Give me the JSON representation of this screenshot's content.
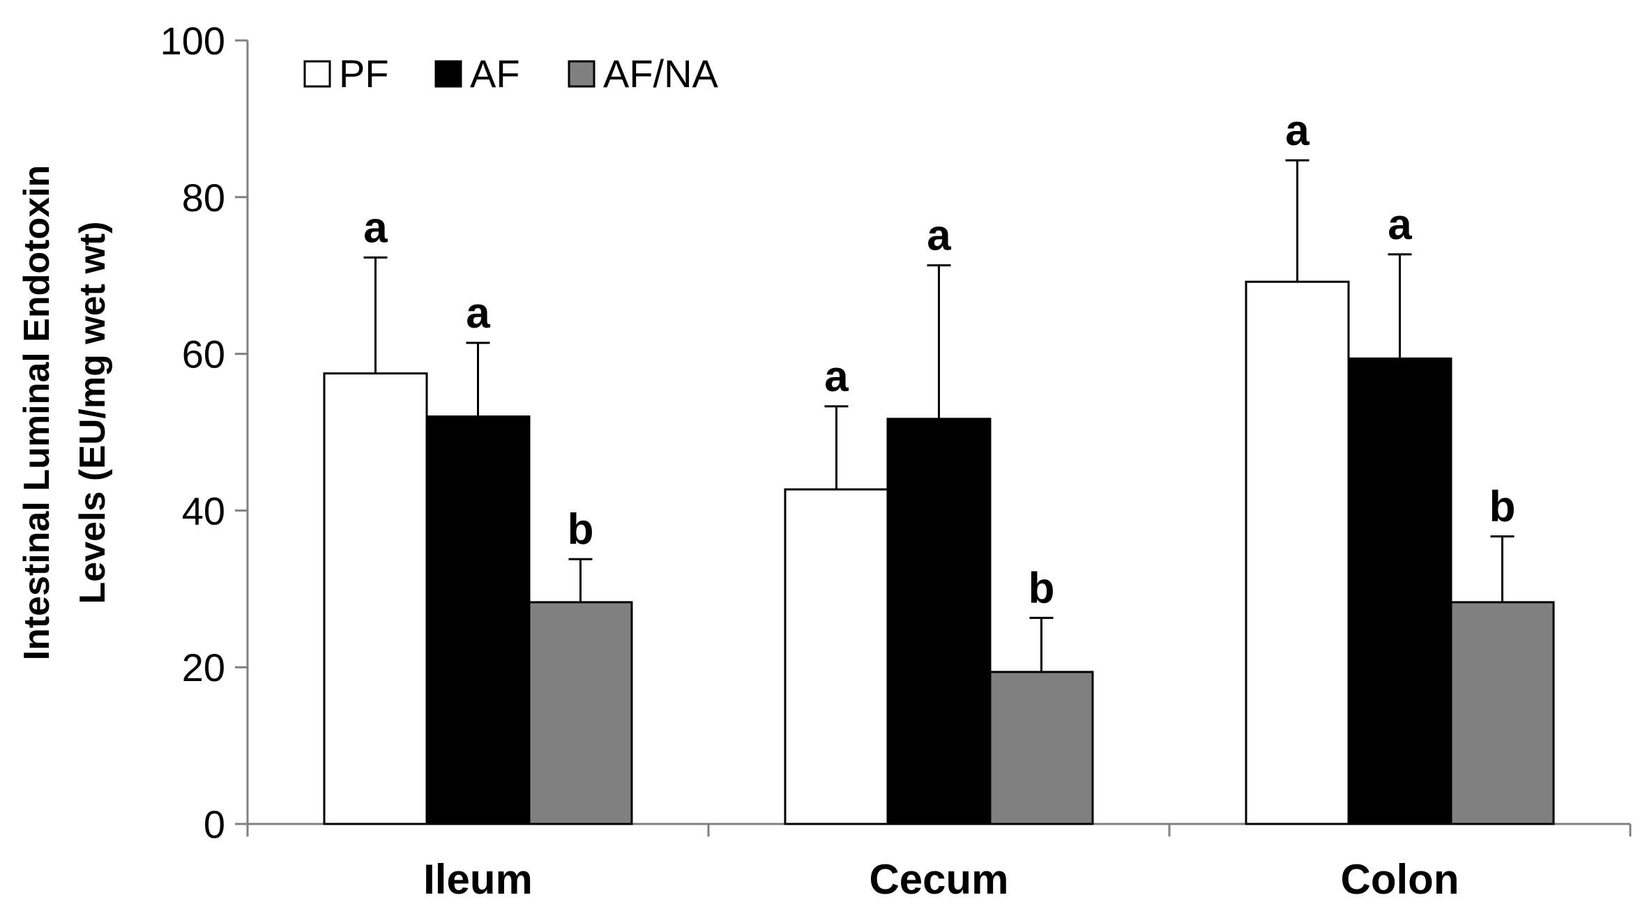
{
  "chart_data": {
    "type": "bar",
    "categories": [
      "Ileum",
      "Cecum",
      "Colon"
    ],
    "series": [
      {
        "name": "PF",
        "color": "#ffffff",
        "values": [
          57.5,
          42.7,
          69.2
        ],
        "errors": [
          14.8,
          10.6,
          15.5
        ],
        "labels": [
          "a",
          "a",
          "a"
        ]
      },
      {
        "name": "AF",
        "color": "#000000",
        "values": [
          52.0,
          51.7,
          59.4
        ],
        "errors": [
          9.4,
          19.6,
          13.3
        ],
        "labels": [
          "a",
          "a",
          "a"
        ]
      },
      {
        "name": "AF/NA",
        "color": "#808080",
        "values": [
          28.3,
          19.4,
          28.3
        ],
        "errors": [
          5.5,
          6.9,
          8.4
        ],
        "labels": [
          "b",
          "b",
          "b"
        ]
      }
    ],
    "title": "",
    "xlabel": "",
    "ylabel_lines": [
      "Intestinal Luminal Endotoxin",
      "Levels (EU/mg wet wt)"
    ],
    "ylim": [
      0,
      100
    ],
    "yticks": [
      0,
      20,
      40,
      60,
      80,
      100
    ],
    "grid": false,
    "legend_position": "top-left",
    "error_bars": "upper only"
  }
}
